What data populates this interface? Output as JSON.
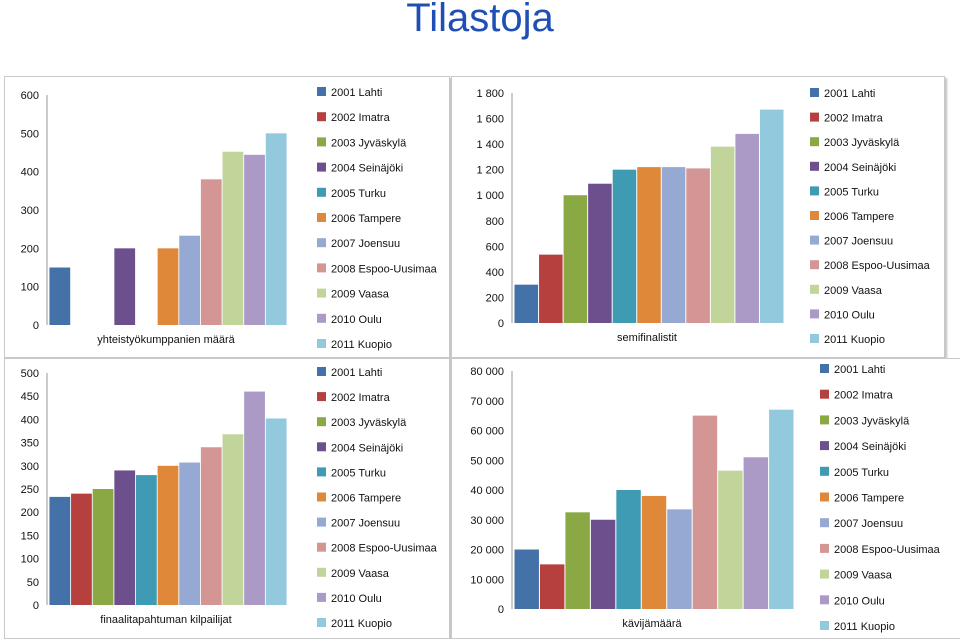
{
  "page_title": "Tilastoja",
  "chart_data": [
    {
      "type": "bar",
      "xlabel": "yhteistyökumppanien määrä",
      "ylim": [
        0,
        600
      ],
      "yticks": [
        "0",
        "100",
        "200",
        "300",
        "400",
        "500",
        "600"
      ],
      "grid": true,
      "legend": "right",
      "series": [
        {
          "name": "2001 Lahti",
          "value": 150
        },
        {
          "name": "2002 Imatra",
          "value": 0
        },
        {
          "name": "2003 Jyväskylä",
          "value": 0
        },
        {
          "name": "2004 Seinäjöki",
          "value": 200
        },
        {
          "name": "2005 Turku",
          "value": 0
        },
        {
          "name": "2006 Tampere",
          "value": 200
        },
        {
          "name": "2007 Joensuu",
          "value": 233
        },
        {
          "name": "2008 Espoo-Uusimaa",
          "value": 380
        },
        {
          "name": "2009 Vaasa",
          "value": 452
        },
        {
          "name": "2010 Oulu",
          "value": 444
        },
        {
          "name": "2011 Kuopio",
          "value": 500
        }
      ]
    },
    {
      "type": "bar",
      "xlabel": "semifinalistit",
      "ylim": [
        0,
        1800
      ],
      "yticks": [
        "0",
        "200",
        "400",
        "600",
        "800",
        "1 000",
        "1 200",
        "1 400",
        "1 600",
        "1 800"
      ],
      "grid": true,
      "legend": "right",
      "series": [
        {
          "name": "2001 Lahti",
          "value": 300
        },
        {
          "name": "2002 Imatra",
          "value": 535
        },
        {
          "name": "2003 Jyväskylä",
          "value": 1000
        },
        {
          "name": "2004 Seinäjöki",
          "value": 1090
        },
        {
          "name": "2005 Turku",
          "value": 1200
        },
        {
          "name": "2006 Tampere",
          "value": 1220
        },
        {
          "name": "2007 Joensuu",
          "value": 1220
        },
        {
          "name": "2008 Espoo-Uusimaa",
          "value": 1210
        },
        {
          "name": "2009 Vaasa",
          "value": 1380
        },
        {
          "name": "2010 Oulu",
          "value": 1480
        },
        {
          "name": "2011 Kuopio",
          "value": 1670
        }
      ]
    },
    {
      "type": "bar",
      "xlabel": "finaalitapahtuman kilpailijat",
      "ylim": [
        0,
        500
      ],
      "yticks": [
        "0",
        "50",
        "100",
        "150",
        "200",
        "250",
        "300",
        "350",
        "400",
        "450",
        "500"
      ],
      "grid": true,
      "legend": "right",
      "series": [
        {
          "name": "2001 Lahti",
          "value": 233
        },
        {
          "name": "2002 Imatra",
          "value": 240
        },
        {
          "name": "2003 Jyväskylä",
          "value": 250
        },
        {
          "name": "2004 Seinäjöki",
          "value": 290
        },
        {
          "name": "2005 Turku",
          "value": 280
        },
        {
          "name": "2006 Tampere",
          "value": 300
        },
        {
          "name": "2007 Joensuu",
          "value": 307
        },
        {
          "name": "2008 Espoo-Uusimaa",
          "value": 340
        },
        {
          "name": "2009 Vaasa",
          "value": 368
        },
        {
          "name": "2010 Oulu",
          "value": 460
        },
        {
          "name": "2011 Kuopio",
          "value": 402
        }
      ]
    },
    {
      "type": "bar",
      "xlabel": "kävijämäärä",
      "ylim": [
        0,
        80000
      ],
      "yticks": [
        "0",
        "10 000",
        "20 000",
        "30 000",
        "40 000",
        "50 000",
        "60 000",
        "70 000",
        "80 000"
      ],
      "grid": true,
      "legend": "right",
      "series": [
        {
          "name": "2001 Lahti",
          "value": 20000
        },
        {
          "name": "2002 Imatra",
          "value": 15000
        },
        {
          "name": "2003 Jyväskylä",
          "value": 32500
        },
        {
          "name": "2004 Seinäjöki",
          "value": 30000
        },
        {
          "name": "2005 Turku",
          "value": 40000
        },
        {
          "name": "2006 Tampere",
          "value": 38000
        },
        {
          "name": "2007 Joensuu",
          "value": 33500
        },
        {
          "name": "2008 Espoo-Uusimaa",
          "value": 65000
        },
        {
          "name": "2009 Vaasa",
          "value": 46500
        },
        {
          "name": "2010 Oulu",
          "value": 51000
        },
        {
          "name": "2011 Kuopio",
          "value": 67000
        }
      ]
    }
  ],
  "colors": [
    "#4472a8",
    "#b5403d",
    "#8aa944",
    "#6e4f8e",
    "#3f9bb3",
    "#e0883a",
    "#96a9d3",
    "#d49694",
    "#c1d59b",
    "#ab9ac6",
    "#93c9dc"
  ]
}
